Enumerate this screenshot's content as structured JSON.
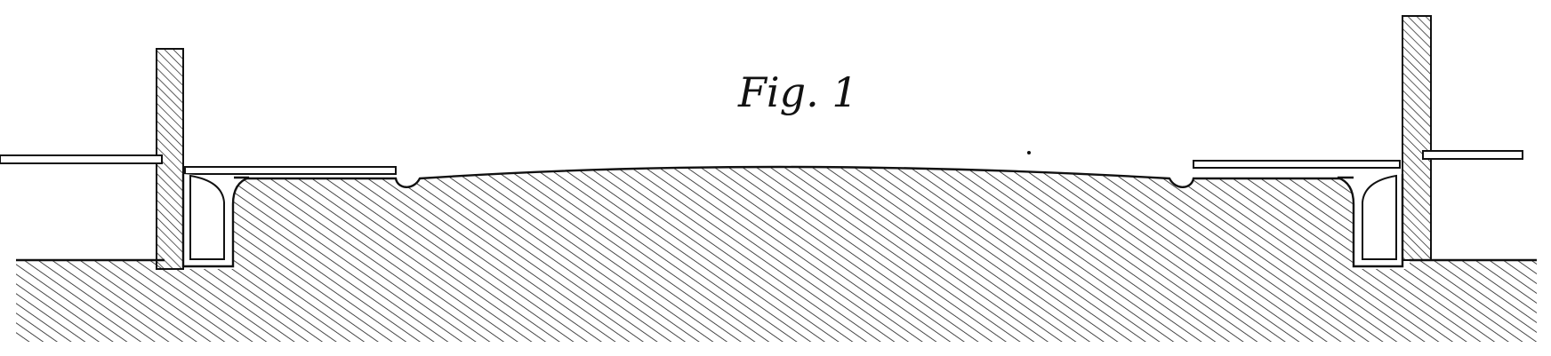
{
  "figure": {
    "caption": "Fig. 1"
  },
  "colors": {
    "ink": "#111111",
    "paper": "#ffffff"
  }
}
